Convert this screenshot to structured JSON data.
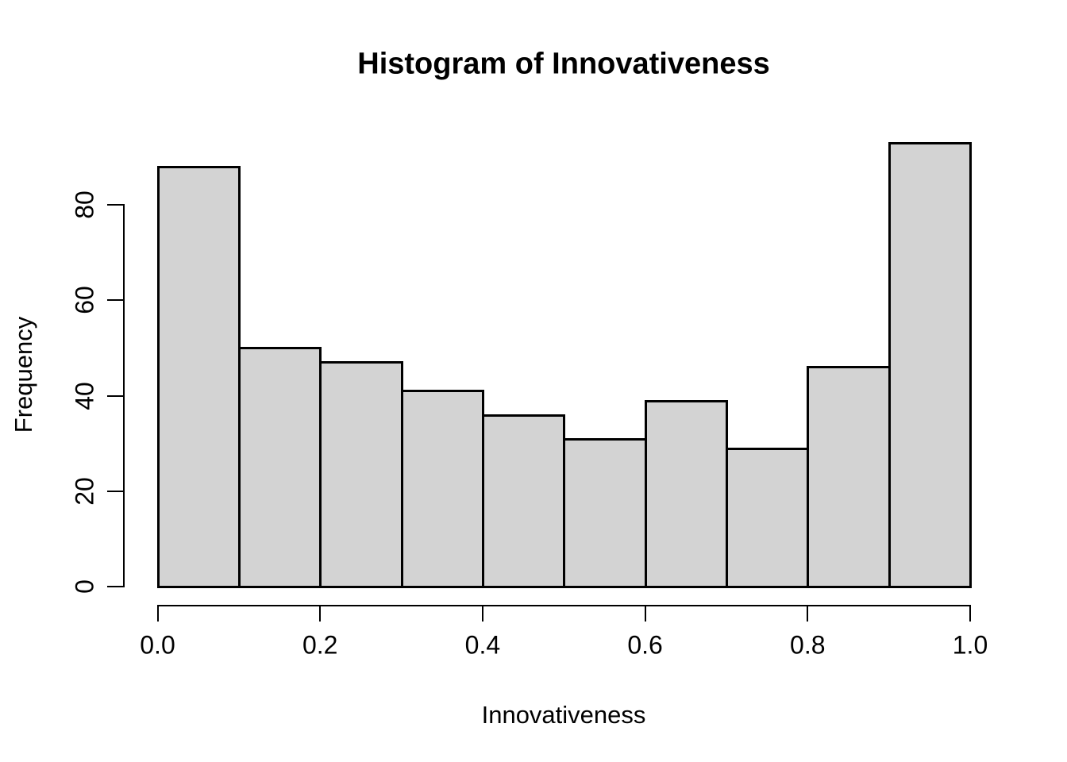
{
  "chart_data": {
    "type": "bar",
    "subtype": "histogram",
    "title": "Histogram of Innovativeness",
    "xlabel": "Innovativeness",
    "ylabel": "Frequency",
    "bin_edges": [
      0.0,
      0.1,
      0.2,
      0.3,
      0.4,
      0.5,
      0.6,
      0.7,
      0.8,
      0.9,
      1.0
    ],
    "counts": [
      88,
      50,
      47,
      41,
      36,
      31,
      39,
      29,
      46,
      93
    ],
    "x_tick_values": [
      0.0,
      0.2,
      0.4,
      0.6,
      0.8,
      1.0
    ],
    "x_tick_labels": [
      "0.0",
      "0.2",
      "0.4",
      "0.6",
      "0.8",
      "1.0"
    ],
    "y_tick_values": [
      0,
      20,
      40,
      60,
      80
    ],
    "y_tick_labels": [
      "0",
      "20",
      "40",
      "60",
      "80"
    ],
    "xlim": [
      0.0,
      1.0
    ],
    "ylim": [
      0,
      80
    ],
    "grid": false,
    "legend": false,
    "bar_fill": "#d3d3d3",
    "bar_border": "#000000",
    "axis_color": "#000000",
    "text_color": "#000000",
    "background": "#ffffff"
  }
}
